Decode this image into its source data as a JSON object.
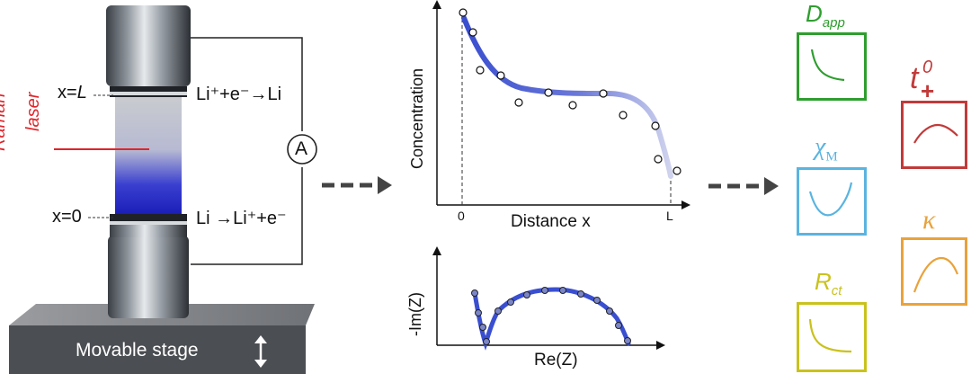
{
  "cell": {
    "top_label_prefix": "x=",
    "top_label_var": "L",
    "bottom_label": "x=0",
    "top_reaction": "Li⁺+e⁻→Li",
    "bottom_reaction": "Li →Li⁺+e⁻",
    "ammeter_symbol": "A",
    "laser_label_1": "Raman",
    "laser_label_2": "laser",
    "stage_label": "Movable stage",
    "stage_arrow_icon": "up-down-arrow-icon"
  },
  "concentration_plot": {
    "ylabel": "Concentration",
    "xlabel": "Distance x",
    "tick_0": "0",
    "tick_L": "L"
  },
  "impedance_plot": {
    "ylabel": "-Im(Z)",
    "xlabel": "Re(Z)"
  },
  "parameters": {
    "d_app": {
      "symbol": "D",
      "subscript": "app",
      "color": "#2e9e2e"
    },
    "chi_m": {
      "symbol": "χ",
      "subscript": "M",
      "color": "#5ab4e0"
    },
    "r_ct": {
      "symbol": "R",
      "subscript": "ct",
      "color": "#c9c21d"
    },
    "t_plus": {
      "symbol": "t",
      "superscript": "0",
      "subscript": "+",
      "color": "#c23a3a"
    },
    "kappa": {
      "symbol": "κ",
      "color": "#e9a23b"
    }
  },
  "colors": {
    "fit_line": "#3a4fd0",
    "laser": "#e0242a",
    "arrow": "#444444"
  }
}
